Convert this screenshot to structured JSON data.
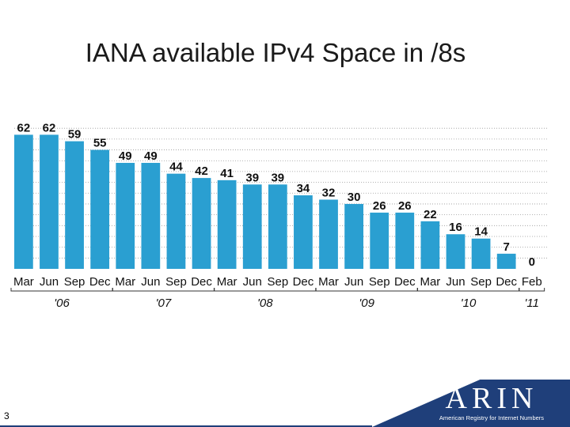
{
  "page": {
    "title": "IANA available IPv4 Space in /8s",
    "slide_number": "3",
    "logo_text": "ARIN",
    "logo_tagline": "American Registry for Internet Numbers"
  },
  "colors": {
    "bar": "#2a9fd1",
    "label": "#111111",
    "footer": "#1f3f7a",
    "grid": "#999999"
  },
  "chart_data": {
    "type": "bar",
    "title": "",
    "xlabel": "",
    "ylabel": "",
    "ylim": [
      0,
      68
    ],
    "grid": true,
    "categories": [
      "Mar",
      "Jun",
      "Sep",
      "Dec",
      "Mar",
      "Jun",
      "Sep",
      "Dec",
      "Mar",
      "Jun",
      "Sep",
      "Dec",
      "Mar",
      "Jun",
      "Sep",
      "Dec",
      "Mar",
      "Jun",
      "Sep",
      "Dec",
      "Feb"
    ],
    "values": [
      62,
      62,
      59,
      55,
      49,
      49,
      44,
      42,
      41,
      39,
      39,
      34,
      32,
      30,
      26,
      26,
      22,
      16,
      14,
      7,
      0
    ],
    "groups": [
      {
        "label": "'06",
        "count": 4
      },
      {
        "label": "'07",
        "count": 4
      },
      {
        "label": "'08",
        "count": 4
      },
      {
        "label": "'09",
        "count": 4
      },
      {
        "label": "'10",
        "count": 4
      },
      {
        "label": "'11",
        "count": 1
      }
    ]
  }
}
